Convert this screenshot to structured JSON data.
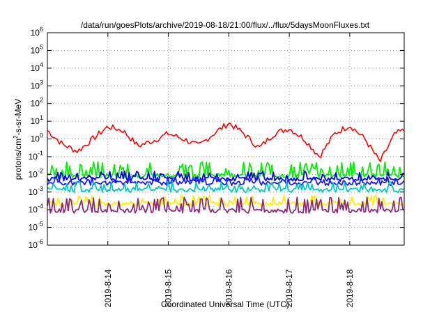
{
  "chart_data": {
    "type": "line",
    "title": "/data/run/goesPlots/archive/2019-08-18/21:00/flux/../flux/5daysMoonFluxes.txt",
    "xlabel": "Coordinated Universal Time (UTC)",
    "ylabel": "protons/cm2-s-sr-MeV",
    "ylabel_parts": {
      "base": "protons/cm",
      "sup": "2",
      "rest": "-s-sr-MeV"
    },
    "yscale": "log",
    "ylim_exponents": [
      -6,
      6
    ],
    "ytick_base": "10",
    "ytick_exponents": [
      "-6",
      "-5",
      "-4",
      "-3",
      "-2",
      "-1",
      "0",
      "1",
      "2",
      "3",
      "4",
      "5",
      "6"
    ],
    "xlim_days": [
      0,
      5.9
    ],
    "xticks": [
      {
        "label": "2019-8-14",
        "day": 1.0
      },
      {
        "label": "2019-8-15",
        "day": 2.0
      },
      {
        "label": "2019-8-16",
        "day": 3.0
      },
      {
        "label": "2019-8-17",
        "day": 4.0
      },
      {
        "label": "2019-8-18",
        "day": 5.0
      }
    ],
    "grid": true,
    "legend": "none",
    "series": [
      {
        "color": "#ff0000",
        "x": [
          0,
          0.25,
          0.5,
          0.75,
          1.0,
          1.25,
          1.5,
          1.75,
          2.0,
          2.25,
          2.5,
          2.75,
          3.0,
          3.25,
          3.5,
          3.75,
          4.0,
          4.25,
          4.5,
          4.75,
          5.0,
          5.25,
          5.5,
          5.75,
          5.9
        ],
        "y": [
          3.0,
          0.5,
          0.2,
          1.0,
          5.0,
          3.0,
          0.4,
          0.8,
          2.0,
          1.0,
          0.4,
          2.0,
          8.0,
          2.0,
          0.3,
          2.0,
          4.0,
          1.0,
          0.1,
          2.0,
          6.0,
          1.0,
          0.05,
          2.0,
          3.0
        ]
      },
      {
        "color": "#00ee00",
        "base": 0.008,
        "spike": 0.04,
        "x": [
          0,
          5.9
        ]
      },
      {
        "color": "#0000ee",
        "base": 0.005,
        "spike": 0.012,
        "x": [
          0,
          5.9
        ]
      },
      {
        "color": "#1a1aff",
        "base": 0.003,
        "spike": 0.006,
        "x": [
          0,
          5.9
        ]
      },
      {
        "color": "#00c8c0",
        "base": 0.0012,
        "spike": 0.003,
        "x": [
          0,
          5.9
        ]
      },
      {
        "color": "#ffee00",
        "base": 0.0002,
        "spike": 0.0005,
        "x": [
          0,
          5.9
        ]
      },
      {
        "color": "#8b2b7a",
        "base": 8e-05,
        "spike": 0.0004,
        "x": [
          0,
          5.9
        ]
      }
    ]
  }
}
